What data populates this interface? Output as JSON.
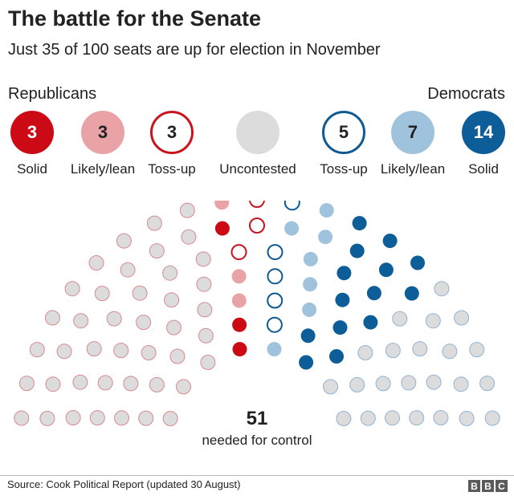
{
  "title": "The battle for the Senate",
  "subtitle": "Just 35 of 100 seats are up for election in November",
  "legend": {
    "republicans_heading": "Republicans",
    "democrats_heading": "Democrats",
    "categories": [
      {
        "label": "Solid",
        "count": "3",
        "color": "#cc0a16",
        "style": "filled"
      },
      {
        "label": "Likely/lean",
        "count": "3",
        "color": "#e9a3a6",
        "style": "filled"
      },
      {
        "label": "Toss-up",
        "count": "3",
        "color": "#c8141d",
        "style": "outline"
      },
      {
        "label": "Uncontested",
        "count": "",
        "color": "#dcdcdc",
        "style": "filled"
      },
      {
        "label": "Toss-up",
        "count": "5",
        "color": "#0f5a93",
        "style": "outline"
      },
      {
        "label": "Likely/lean",
        "count": "7",
        "color": "#9fc3dc",
        "style": "filled"
      },
      {
        "label": "Solid",
        "count": "14",
        "color": "#0d5d99",
        "style": "filled"
      }
    ]
  },
  "chart_data": {
    "type": "parliament",
    "total_seats": 100,
    "seats_up_for_election": 35,
    "series": [
      {
        "name": "Uncontested",
        "party": "Republican",
        "values": [
          42
        ]
      },
      {
        "name": "Solid",
        "party": "Republican",
        "values": [
          3
        ]
      },
      {
        "name": "Likely/lean",
        "party": "Republican",
        "values": [
          3
        ]
      },
      {
        "name": "Toss-up",
        "party": "Republican",
        "values": [
          3
        ]
      },
      {
        "name": "Toss-up",
        "party": "Democrat",
        "values": [
          5
        ]
      },
      {
        "name": "Likely/lean",
        "party": "Democrat",
        "values": [
          7
        ]
      },
      {
        "name": "Solid",
        "party": "Democrat",
        "values": [
          14
        ]
      },
      {
        "name": "Uncontested",
        "party": "Democrat",
        "values": [
          23
        ]
      }
    ],
    "majority_number": "51",
    "majority_label": "needed for control"
  },
  "colors": {
    "rep_solid": "#cc0a16",
    "rep_lean": "#e9a3a6",
    "rep_tossup": "#c8141d",
    "rep_uncontested_stroke": "#d98a8c",
    "uncontested_fill": "#dcdcdc",
    "dem_tossup": "#0f5a93",
    "dem_lean": "#9fc3dc",
    "dem_solid": "#0d5d99",
    "dem_uncontested_stroke": "#8fb3d3"
  },
  "footer": {
    "source": "Source: Cook Political Report (updated 30 August)",
    "logo_letters": [
      "B",
      "B",
      "C"
    ]
  }
}
